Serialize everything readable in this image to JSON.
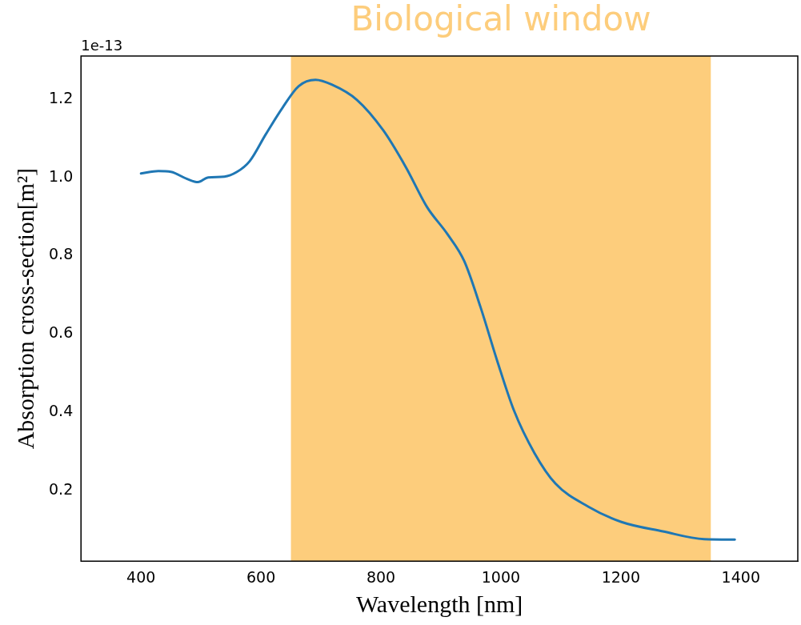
{
  "chart_data": {
    "type": "line",
    "xlabel": "Wavelength [nm]",
    "ylabel": "Absorption cross-section[m²]",
    "annotations": [
      "1e-13"
    ],
    "xlim": [
      300,
      1495
    ],
    "ylim": [
      0.02,
      1.31
    ],
    "xticks": [
      400,
      600,
      800,
      1000,
      1200,
      1400
    ],
    "yticks": [
      0.2,
      0.4,
      0.6,
      0.8,
      {
        "value": 1,
        "label": "1.0"
      },
      1.2
    ],
    "grid": false,
    "legend": false,
    "marker": "none",
    "line_style": "solid",
    "bands": [
      {
        "axis": "x",
        "from": 650,
        "to": 1350,
        "label": "Biological window",
        "color": "#fdcd7c"
      }
    ],
    "series": [
      {
        "color": "#1f77b4",
        "x": [
          400,
          429,
          450,
          477,
          495,
          512,
          539,
          560,
          581,
          608,
          636,
          663,
          691,
          718,
          760,
          804,
          842,
          877,
          911,
          939,
          966,
          994,
          1022,
          1056,
          1091,
          1146,
          1201,
          1270,
          1339,
          1390
        ],
        "values": [
          1.01,
          1.016,
          1.014,
          0.996,
          0.988,
          1.0,
          1.002,
          1.014,
          1.041,
          1.11,
          1.178,
          1.233,
          1.249,
          1.237,
          1.198,
          1.12,
          1.025,
          0.924,
          0.855,
          0.786,
          0.669,
          0.531,
          0.404,
          0.296,
          0.218,
          0.159,
          0.12,
          0.096,
          0.076,
          0.075
        ]
      }
    ]
  }
}
